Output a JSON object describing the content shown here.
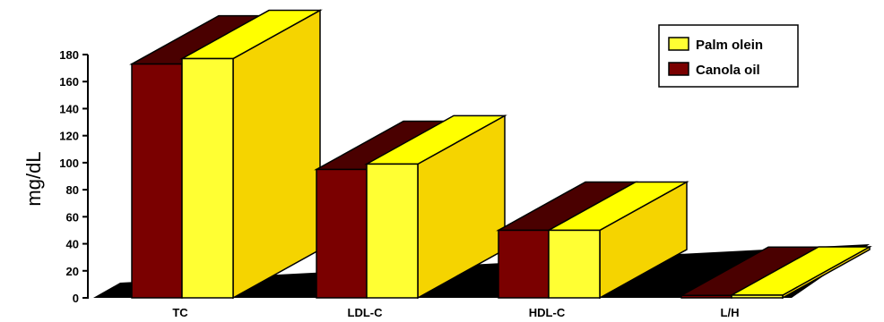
{
  "chart_data": {
    "type": "bar",
    "categories": [
      "TC",
      "LDL-C",
      "HDL-C",
      "L/H"
    ],
    "series": [
      {
        "name": "Canola oil",
        "values": [
          173,
          95,
          50,
          1.8
        ],
        "color": "#7a0000",
        "top_color": "#4a0000"
      },
      {
        "name": "Palm olein",
        "values": [
          177,
          99,
          50,
          2.0
        ],
        "color": "#ffff33",
        "side_color": "#f5d400",
        "top_color": "#ffff00"
      }
    ],
    "ylabel": "mg/dL",
    "ylim": [
      0,
      180
    ],
    "yticks": [
      0,
      20,
      40,
      60,
      80,
      100,
      120,
      140,
      160,
      180
    ],
    "legend": {
      "position": "top-right",
      "order": [
        "Palm olein",
        "Canola oil"
      ]
    }
  }
}
